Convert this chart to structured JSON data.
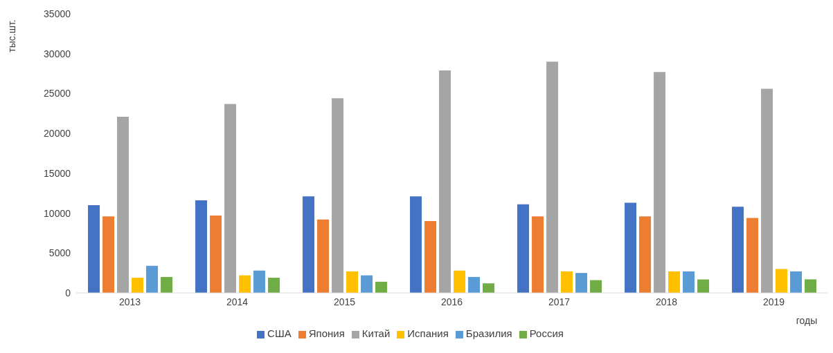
{
  "chart_data": {
    "type": "bar",
    "ylabel": "тыс.шт.",
    "xlabel": "годы",
    "categories": [
      "2013",
      "2014",
      "2015",
      "2016",
      "2017",
      "2018",
      "2019"
    ],
    "series": [
      {
        "name": "США",
        "color": "#4472c4",
        "values": [
          11000,
          11600,
          12100,
          12100,
          11100,
          11300,
          10800
        ]
      },
      {
        "name": "Япония",
        "color": "#ed7d31",
        "values": [
          9600,
          9700,
          9200,
          9000,
          9600,
          9600,
          9400
        ]
      },
      {
        "name": "Китай",
        "color": "#a5a5a5",
        "values": [
          22100,
          23700,
          24400,
          27900,
          29000,
          27700,
          25600
        ]
      },
      {
        "name": "Испания",
        "color": "#ffc000",
        "values": [
          1900,
          2200,
          2700,
          2800,
          2700,
          2700,
          3000
        ]
      },
      {
        "name": "Бразилия",
        "color": "#5b9bd5",
        "values": [
          3400,
          2800,
          2200,
          2000,
          2500,
          2700,
          2700
        ]
      },
      {
        "name": "Россия",
        "color": "#70ad47",
        "values": [
          2000,
          1900,
          1400,
          1200,
          1600,
          1700,
          1700
        ]
      }
    ],
    "ylim": [
      0,
      35000
    ],
    "yticks": [
      0,
      5000,
      10000,
      15000,
      20000,
      25000,
      30000,
      35000
    ],
    "grid": false,
    "legend": "bottom"
  }
}
